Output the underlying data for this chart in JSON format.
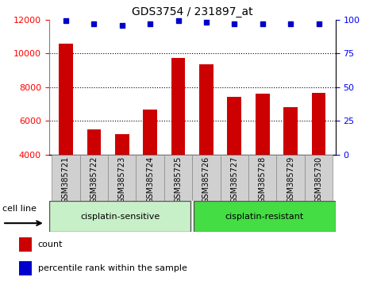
{
  "title": "GDS3754 / 231897_at",
  "categories": [
    "GSM385721",
    "GSM385722",
    "GSM385723",
    "GSM385724",
    "GSM385725",
    "GSM385726",
    "GSM385727",
    "GSM385728",
    "GSM385729",
    "GSM385730"
  ],
  "bar_values": [
    10600,
    5500,
    5200,
    6650,
    9750,
    9350,
    7400,
    7600,
    6800,
    7650
  ],
  "percentile_values": [
    99,
    97,
    96,
    97,
    99,
    98,
    97,
    97,
    97,
    97
  ],
  "bar_color": "#cc0000",
  "dot_color": "#0000cc",
  "ylim_left": [
    4000,
    12000
  ],
  "ylim_right": [
    0,
    100
  ],
  "yticks_left": [
    4000,
    6000,
    8000,
    10000,
    12000
  ],
  "yticks_right": [
    0,
    25,
    50,
    75,
    100
  ],
  "grid_lines": [
    6000,
    8000,
    10000
  ],
  "group1_label": "cisplatin-sensitive",
  "group2_label": "cisplatin-resistant",
  "cell_line_label": "cell line",
  "legend_count": "count",
  "legend_percentile": "percentile rank within the sample",
  "bar_color_hex": "#cc0000",
  "dot_color_hex": "#0000cc",
  "group1_bg": "#c8f0c8",
  "group2_bg": "#44dd44",
  "ticklabel_bg": "#d0d0d0",
  "bar_width": 0.5,
  "n_group1": 5,
  "n_group2": 5
}
